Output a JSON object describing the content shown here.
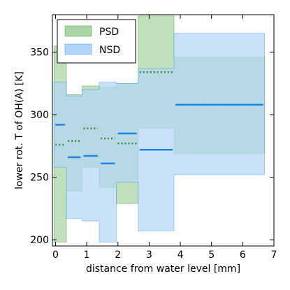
{
  "chart_data": {
    "type": "area",
    "title": "",
    "xlabel": "distance from water level [mm]",
    "ylabel": "lower rot. T of OH(A) [K]",
    "xlim": [
      -0.1,
      7.0
    ],
    "ylim": [
      195,
      380
    ],
    "xticks": [
      0,
      1,
      2,
      3,
      4,
      5,
      6,
      7
    ],
    "yticks": [
      200,
      250,
      300,
      350
    ],
    "grid": false,
    "legend_position": "top-left",
    "series": [
      {
        "name": "PSD",
        "fill_color": "#a9d6a4",
        "line_color": "#2f8f2f",
        "line_style": "dotted",
        "segments": [
          {
            "x0": -0.05,
            "x1": 0.35,
            "low": 198,
            "high": 355,
            "mean": 276
          },
          {
            "x0": 0.35,
            "x1": 0.85,
            "low": 239,
            "high": 316,
            "mean": 279
          },
          {
            "x0": 0.85,
            "x1": 1.4,
            "low": 258,
            "high": 323,
            "mean": 289
          },
          {
            "x0": 1.4,
            "x1": 1.95,
            "low": 242,
            "high": 322,
            "mean": 281
          },
          {
            "x0": 1.95,
            "x1": 2.65,
            "low": 229,
            "high": 325,
            "mean": 277
          },
          {
            "x0": 2.65,
            "x1": 3.8,
            "low": 289,
            "high": 379,
            "mean": 334
          },
          {
            "x0": 3.8,
            "x1": 6.7,
            "low": 269,
            "high": 346,
            "mean": 308
          }
        ]
      },
      {
        "name": "NSD",
        "fill_color": "#b2d6f7",
        "line_color": "#1f86e8",
        "line_style": "solid",
        "segments": [
          {
            "x0": -0.05,
            "x1": 0.35,
            "low": 258,
            "high": 326,
            "mean": 292
          },
          {
            "x0": 0.35,
            "x1": 0.85,
            "low": 217,
            "high": 315,
            "mean": 266
          },
          {
            "x0": 0.85,
            "x1": 1.4,
            "low": 215,
            "high": 320,
            "mean": 267
          },
          {
            "x0": 1.4,
            "x1": 1.95,
            "low": 198,
            "high": 326,
            "mean": 261
          },
          {
            "x0": 1.95,
            "x1": 2.65,
            "low": 246,
            "high": 325,
            "mean": 285
          },
          {
            "x0": 2.65,
            "x1": 3.8,
            "low": 207,
            "high": 337,
            "mean": 272
          },
          {
            "x0": 3.8,
            "x1": 6.7,
            "low": 252,
            "high": 365,
            "mean": 308
          }
        ]
      }
    ]
  }
}
